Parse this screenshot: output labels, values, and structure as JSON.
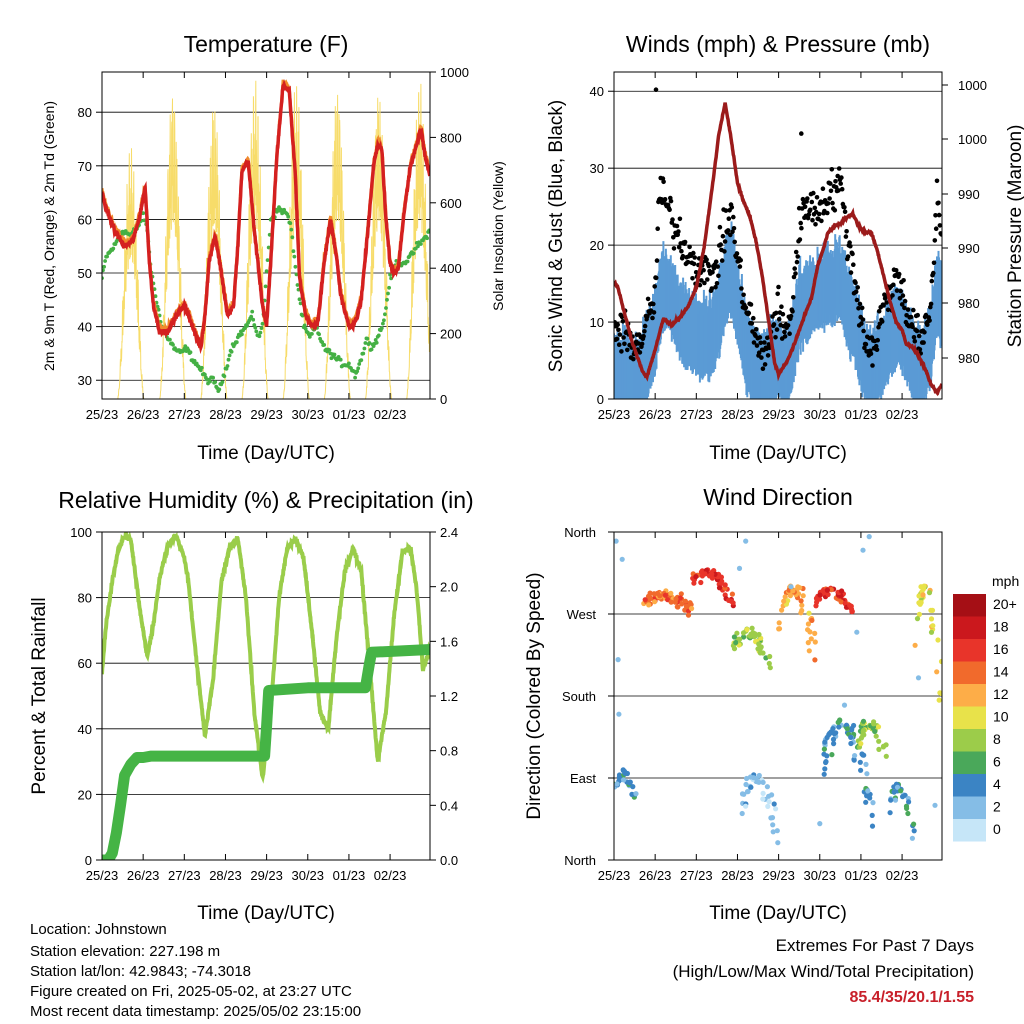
{
  "x_ticks": [
    "25/23",
    "26/23",
    "27/23",
    "28/23",
    "29/23",
    "30/23",
    "01/23",
    "02/23"
  ],
  "panels": {
    "temperature": {
      "title": "Temperature (F)",
      "xlabel": "Time (Day/UTC)",
      "ylabel_left": "2m & 9m T (Red, Orange) & 2m Td (Green)",
      "ylabel_right": "Solar Insolation (Yellow)",
      "left_ticks": [
        "30",
        "40",
        "50",
        "60",
        "70",
        "80"
      ],
      "right_ticks": [
        "0",
        "200",
        "400",
        "600",
        "800",
        "1000"
      ]
    },
    "winds": {
      "title": "Winds (mph) & Pressure (mb)",
      "xlabel": "Time (Day/UTC)",
      "ylabel_left": "Sonic Wind & Gust (Blue, Black)",
      "ylabel_right": "Station Pressure (Maroon)",
      "left_ticks": [
        "0",
        "10",
        "20",
        "30",
        "40"
      ],
      "right_ticks": [
        "980",
        "980",
        "990",
        "990",
        "1000",
        "1000"
      ]
    },
    "humidity": {
      "title": "Relative Humidity (%) & Precipitation (in)",
      "xlabel": "Time (Day/UTC)",
      "ylabel_left": "Percent & Total Rainfall",
      "left_ticks": [
        "0",
        "20",
        "40",
        "60",
        "80",
        "100"
      ],
      "right_ticks": [
        "0.0",
        "0.4",
        "0.8",
        "1.2",
        "1.6",
        "2.0",
        "2.4"
      ]
    },
    "direction": {
      "title": "Wind Direction",
      "xlabel": "Time (Day/UTC)",
      "ylabel_left": "Direction (Colored By Speed)",
      "left_ticks": [
        "North",
        "East",
        "South",
        "West",
        "North"
      ]
    }
  },
  "legend": {
    "title": "mph",
    "labels": [
      "20+",
      "18",
      "16",
      "14",
      "12",
      "10",
      "8",
      "6",
      "4",
      "2",
      "0"
    ],
    "colors": [
      "#a50f15",
      "#cb181d",
      "#e8342a",
      "#f16a2c",
      "#fdad48",
      "#e8e24a",
      "#9ccc4a",
      "#4aa85a",
      "#3b84c4",
      "#85bde6",
      "#c6e6f8"
    ]
  },
  "info": {
    "location": "Location: Johnstown",
    "elevation": "Station elevation: 227.198 m",
    "latlon": "Station lat/lon: 42.9843; -74.3018",
    "created": "Figure created on Fri, 2025-05-02, at 23:27 UTC",
    "timestamp": "Most recent data timestamp: 2025/05/02 23:15:00"
  },
  "extremes": {
    "title": "Extremes For Past 7 Days",
    "subtitle": "(High/Low/Max Wind/Total Precipitation)",
    "value": "85.4/35/20.1/1.55"
  },
  "colors": {
    "temp_2m": "#d42020",
    "temp_9m": "#f08a2c",
    "dewpoint": "#44b044",
    "solar": "#f7dc6a",
    "wind": "#5b9bd5",
    "gust": "#000000",
    "pressure": "#9b1b1b",
    "rh": "#9acd4a",
    "rain": "#45b445"
  },
  "chart_data": [
    {
      "type": "line",
      "title": "Temperature (F)",
      "xlabel": "Time (Day/UTC)",
      "ylabel": "2m & 9m T (Red, Orange) & 2m Td (Green)",
      "y2label": "Solar Insolation (Yellow)",
      "x_range": [
        0,
        7.97
      ],
      "ylim": [
        26.5,
        87.5
      ],
      "y2lim": [
        0,
        1000
      ],
      "series": [
        {
          "name": "2m T",
          "axis": "left",
          "x": [
            0,
            0.1,
            0.3,
            0.55,
            0.75,
            0.9,
            1.05,
            1.15,
            1.25,
            1.4,
            1.6,
            1.8,
            2.0,
            2.2,
            2.4,
            2.5,
            2.6,
            2.75,
            2.9,
            3.05,
            3.2,
            3.3,
            3.4,
            3.55,
            3.7,
            3.9,
            4.0,
            4.1,
            4.25,
            4.4,
            4.55,
            4.7,
            4.8,
            4.95,
            5.1,
            5.25,
            5.4,
            5.55,
            5.7,
            5.8,
            6.0,
            6.1,
            6.2,
            6.3,
            6.45,
            6.6,
            6.7,
            6.8,
            6.9,
            7.0,
            7.1,
            7.2,
            7.35,
            7.5,
            7.65,
            7.75,
            7.85,
            7.97
          ],
          "y": [
            65,
            62,
            58,
            55,
            56,
            60,
            66,
            52,
            44,
            39,
            39,
            42,
            44,
            40,
            36,
            42,
            52,
            57,
            50,
            42,
            44,
            55,
            69,
            71,
            58,
            44,
            40,
            52,
            72,
            85,
            84,
            68,
            49,
            42,
            40,
            41,
            52,
            60,
            53,
            46,
            40,
            40,
            42,
            45,
            57,
            70,
            74,
            73,
            60,
            52,
            50,
            51,
            62,
            70,
            74,
            77,
            72,
            68
          ]
        },
        {
          "name": "2m Td",
          "axis": "left",
          "x": [
            0,
            0.1,
            0.3,
            0.5,
            0.7,
            0.9,
            1.0,
            1.1,
            1.2,
            1.3,
            1.45,
            1.6,
            1.75,
            1.9,
            2.05,
            2.2,
            2.4,
            2.55,
            2.7,
            2.85,
            3.0,
            3.15,
            3.3,
            3.5,
            3.65,
            3.8,
            3.9,
            4.0,
            4.1,
            4.3,
            4.5,
            4.6,
            4.75,
            4.9,
            5.05,
            5.2,
            5.4,
            5.55,
            5.7,
            5.85,
            6.0,
            6.15,
            6.3,
            6.45,
            6.55,
            6.7,
            6.85,
            7.0,
            7.15,
            7.35,
            7.5,
            7.65,
            7.8,
            7.97
          ],
          "y": [
            49,
            53,
            55,
            58,
            57,
            59,
            61,
            58,
            50,
            46,
            40,
            38,
            36,
            35,
            36,
            34,
            32,
            30,
            30,
            28,
            32,
            36,
            38,
            40,
            42,
            38,
            40,
            50,
            60,
            62,
            61,
            58,
            48,
            40,
            38,
            40,
            36,
            35,
            34,
            33,
            33,
            31,
            34,
            38,
            36,
            38,
            41,
            49,
            52,
            52,
            53,
            55,
            56,
            58
          ]
        },
        {
          "name": "Solar Insolation",
          "axis": "right",
          "days_peak": [
            0.7,
            1.72,
            2.72,
            3.72,
            4.72,
            5.72,
            6.72,
            7.72
          ],
          "peak": [
            780,
            960,
            930,
            980,
            980,
            970,
            960,
            980
          ]
        }
      ]
    },
    {
      "type": "line",
      "title": "Winds (mph) & Pressure (mb)",
      "xlabel": "Time (Day/UTC)",
      "ylabel": "Sonic Wind & Gust (Blue, Black)",
      "y2label": "Station Pressure (Maroon)",
      "x_range": [
        0,
        7.97
      ],
      "ylim": [
        0,
        42.5
      ],
      "series": [
        {
          "name": "Wind",
          "axis": "left",
          "x": [
            0,
            0.3,
            0.6,
            0.8,
            1.0,
            1.1,
            1.3,
            1.5,
            1.7,
            1.9,
            2.1,
            2.3,
            2.5,
            2.7,
            2.85,
            3.0,
            3.2,
            3.4,
            3.6,
            3.8,
            4.0,
            4.15,
            4.3,
            4.5,
            4.7,
            4.9,
            5.1,
            5.3,
            5.5,
            5.7,
            5.9,
            6.1,
            6.3,
            6.5,
            6.7,
            6.9,
            7.1,
            7.3,
            7.5,
            7.7,
            7.85,
            7.97
          ],
          "y": [
            3,
            4,
            2,
            6,
            9,
            13,
            15,
            12,
            10,
            9,
            8,
            8,
            10,
            15,
            17,
            13,
            7,
            4,
            4,
            5,
            6,
            4,
            6,
            12,
            13,
            14,
            15,
            15,
            16,
            12,
            9,
            5,
            4,
            6,
            8,
            10,
            8,
            5,
            4,
            8,
            14,
            12
          ]
        },
        {
          "name": "Gust",
          "axis": "left",
          "x": [
            0,
            0.3,
            0.6,
            0.8,
            1.0,
            1.1,
            1.3,
            1.5,
            1.7,
            1.9,
            2.1,
            2.3,
            2.5,
            2.7,
            2.85,
            3.0,
            3.2,
            3.4,
            3.6,
            3.8,
            4.0,
            4.15,
            4.3,
            4.5,
            4.7,
            4.9,
            5.1,
            5.3,
            5.5,
            5.7,
            5.9,
            6.1,
            6.3,
            6.5,
            6.7,
            6.9,
            7.1,
            7.3,
            7.5,
            7.7,
            7.85,
            7.97
          ],
          "y": [
            9,
            8,
            7,
            10,
            13,
            27,
            25,
            22,
            20,
            18,
            17,
            16,
            17,
            22,
            24,
            18,
            12,
            9,
            5,
            8,
            12,
            8,
            11,
            22,
            26,
            24,
            26,
            27,
            28,
            20,
            14,
            8,
            6,
            11,
            14,
            16,
            12,
            9,
            7,
            12,
            26,
            22
          ]
        },
        {
          "name": "Pressure",
          "axis": "right",
          "x": [
            0,
            0.1,
            0.25,
            0.45,
            0.7,
            0.8,
            1.0,
            1.2,
            1.4,
            1.6,
            1.8,
            2.0,
            2.2,
            2.4,
            2.55,
            2.7,
            2.85,
            3.0,
            3.15,
            3.3,
            3.45,
            3.6,
            3.75,
            3.9,
            4.0,
            4.2,
            4.4,
            4.6,
            4.8,
            4.95,
            5.1,
            5.2,
            5.35,
            5.5,
            5.65,
            5.8,
            5.95,
            6.1,
            6.25,
            6.4,
            6.55,
            6.7,
            6.85,
            7.0,
            7.1,
            7.25,
            7.4,
            7.55,
            7.7,
            7.85,
            7.97
          ],
          "y": [
            985.5,
            985.0,
            983.0,
            980.5,
            978.2,
            977.8,
            980.0,
            982.5,
            982.0,
            982.6,
            983.5,
            985.0,
            988.5,
            993.5,
            997.5,
            1000.0,
            997.0,
            993.5,
            992.0,
            990.8,
            988.8,
            986.0,
            982.5,
            979.0,
            978.0,
            979.0,
            980.6,
            982.5,
            984.2,
            986.8,
            988.3,
            989.5,
            990.0,
            990.2,
            990.7,
            991.0,
            990.0,
            989.5,
            989.5,
            988.0,
            986.0,
            984.0,
            982.3,
            981.6,
            980.5,
            980.2,
            979.5,
            978.5,
            977.2,
            976.5,
            977.2
          ]
        }
      ]
    },
    {
      "type": "line",
      "title": "Relative Humidity (%) & Precipitation (in)",
      "xlabel": "Time (Day/UTC)",
      "ylabel": "Percent & Total Rainfall",
      "x_range": [
        0,
        7.97
      ],
      "ylim": [
        0,
        100
      ],
      "y2lim": [
        0,
        2.4
      ],
      "series": [
        {
          "name": "Relative Humidity",
          "axis": "left",
          "x": [
            0,
            0.1,
            0.25,
            0.4,
            0.55,
            0.7,
            0.9,
            1.1,
            1.25,
            1.4,
            1.6,
            1.8,
            2.0,
            2.1,
            2.3,
            2.5,
            2.7,
            2.9,
            3.1,
            3.3,
            3.5,
            3.7,
            3.9,
            4.1,
            4.3,
            4.5,
            4.7,
            4.9,
            5.1,
            5.3,
            5.5,
            5.7,
            5.9,
            6.1,
            6.3,
            6.5,
            6.7,
            6.9,
            7.1,
            7.3,
            7.5,
            7.65,
            7.8,
            7.97
          ],
          "y": [
            57,
            72,
            85,
            95,
            99,
            98,
            78,
            62,
            72,
            86,
            96,
            99,
            92,
            85,
            60,
            38,
            55,
            85,
            95,
            98,
            80,
            45,
            25,
            45,
            80,
            95,
            98,
            92,
            70,
            45,
            40,
            68,
            88,
            95,
            88,
            60,
            30,
            45,
            75,
            94,
            95,
            82,
            58,
            65
          ]
        },
        {
          "name": "Total Precipitation",
          "axis": "right",
          "x": [
            0,
            0.05,
            0.15,
            0.25,
            0.35,
            0.45,
            0.55,
            0.7,
            0.85,
            1.0,
            1.2,
            2.0,
            3.0,
            3.95,
            4.0,
            4.05,
            5.0,
            6.0,
            6.4,
            6.5,
            6.55,
            7.97
          ],
          "y": [
            0.0,
            0.0,
            0.0,
            0.05,
            0.2,
            0.4,
            0.62,
            0.7,
            0.75,
            0.75,
            0.76,
            0.76,
            0.76,
            0.76,
            0.98,
            1.24,
            1.26,
            1.26,
            1.26,
            1.44,
            1.52,
            1.54
          ]
        }
      ]
    },
    {
      "type": "scatter",
      "title": "Wind Direction",
      "xlabel": "Time (Day/UTC)",
      "ylabel": "Direction (Colored By Speed)",
      "x_range": [
        0,
        7.97
      ],
      "ylim": [
        0,
        360
      ],
      "y_categories": [
        "North",
        "East",
        "South",
        "West",
        "North"
      ],
      "clusters": [
        {
          "x": [
            0,
            0.55
          ],
          "y": [
            45,
            95
          ],
          "speed": 4
        },
        {
          "x": [
            0.7,
            1.9
          ],
          "y": [
            265,
            290
          ],
          "speed": 14
        },
        {
          "x": [
            1.9,
            2.9
          ],
          "y": [
            270,
            315
          ],
          "speed": 16
        },
        {
          "x": [
            2.9,
            3.8
          ],
          "y": [
            200,
            250
          ],
          "speed": 8
        },
        {
          "x": [
            3.1,
            4.0
          ],
          "y": [
            0,
            90
          ],
          "speed": 2
        },
        {
          "x": [
            4.0,
            4.9
          ],
          "y": [
            190,
            300
          ],
          "speed": 12
        },
        {
          "x": [
            4.9,
            5.8
          ],
          "y": [
            265,
            295
          ],
          "speed": 16
        },
        {
          "x": [
            5.1,
            6.3
          ],
          "y": [
            5,
            150
          ],
          "speed": 4
        },
        {
          "x": [
            5.9,
            6.7
          ],
          "y": [
            80,
            150
          ],
          "speed": 8
        },
        {
          "x": [
            6.7,
            7.3
          ],
          "y": [
            0,
            80
          ],
          "speed": 4
        },
        {
          "x": [
            7.3,
            7.97
          ],
          "y": [
            120,
            300
          ],
          "speed": 10
        }
      ]
    }
  ]
}
